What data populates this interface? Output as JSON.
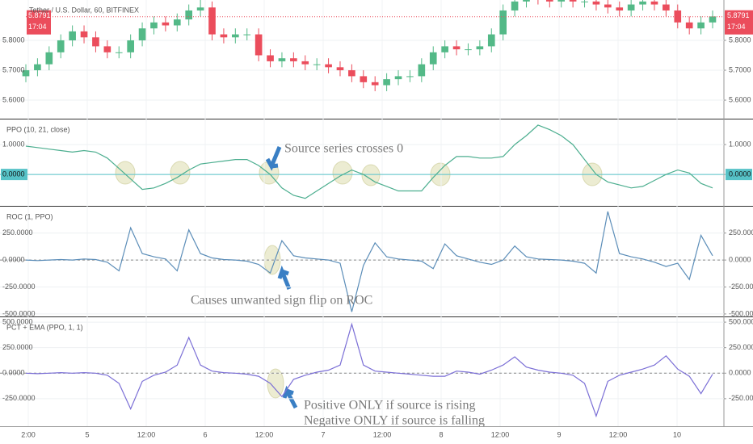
{
  "time_axis": {
    "labels": [
      "2:00",
      "5",
      "12:00",
      "6",
      "12:00",
      "7",
      "12:00",
      "8",
      "12:00",
      "9",
      "12:00",
      "10"
    ]
  },
  "chart_data": [
    {
      "type": "candlestick",
      "title": "Tether / U.S. Dollar, 60, BITFINEX",
      "open": [
        5.68,
        5.7,
        5.72,
        5.76,
        5.8,
        5.83,
        5.81,
        5.78,
        5.76,
        5.76,
        5.8,
        5.84,
        5.86,
        5.85,
        5.87,
        5.9,
        5.91,
        5.82,
        5.81,
        5.82,
        5.82,
        5.75,
        5.73,
        5.74,
        5.73,
        5.72,
        5.72,
        5.71,
        5.7,
        5.68,
        5.66,
        5.65,
        5.67,
        5.68,
        5.68,
        5.72,
        5.76,
        5.78,
        5.77,
        5.77,
        5.78,
        5.82,
        5.9,
        5.93,
        5.95,
        5.94,
        5.93,
        5.94,
        5.93,
        5.93,
        5.92,
        5.91,
        5.9,
        5.92,
        5.93,
        5.92,
        5.9,
        5.86,
        5.84,
        5.86
      ],
      "high": [
        5.72,
        5.74,
        5.78,
        5.82,
        5.85,
        5.85,
        5.83,
        5.8,
        5.78,
        5.82,
        5.86,
        5.88,
        5.88,
        5.89,
        5.92,
        5.97,
        5.93,
        5.84,
        5.84,
        5.84,
        5.84,
        5.77,
        5.76,
        5.76,
        5.75,
        5.74,
        5.74,
        5.73,
        5.72,
        5.7,
        5.68,
        5.69,
        5.7,
        5.7,
        5.74,
        5.78,
        5.8,
        5.8,
        5.79,
        5.8,
        5.84,
        5.92,
        5.95,
        5.97,
        5.97,
        5.96,
        5.96,
        5.96,
        5.95,
        5.95,
        5.94,
        5.93,
        5.94,
        5.95,
        5.95,
        5.94,
        5.92,
        5.88,
        5.88,
        5.9
      ],
      "low": [
        5.66,
        5.68,
        5.7,
        5.74,
        5.78,
        5.79,
        5.76,
        5.74,
        5.74,
        5.74,
        5.78,
        5.82,
        5.83,
        5.83,
        5.85,
        5.88,
        5.8,
        5.79,
        5.79,
        5.8,
        5.73,
        5.71,
        5.71,
        5.71,
        5.7,
        5.7,
        5.69,
        5.68,
        5.66,
        5.64,
        5.63,
        5.63,
        5.65,
        5.66,
        5.66,
        5.7,
        5.74,
        5.75,
        5.75,
        5.75,
        5.76,
        5.8,
        5.88,
        5.91,
        5.92,
        5.91,
        5.91,
        5.91,
        5.91,
        5.9,
        5.89,
        5.88,
        5.88,
        5.9,
        5.9,
        5.88,
        5.84,
        5.82,
        5.82,
        5.84
      ],
      "close": [
        5.7,
        5.72,
        5.76,
        5.8,
        5.83,
        5.81,
        5.78,
        5.76,
        5.76,
        5.8,
        5.84,
        5.86,
        5.85,
        5.87,
        5.9,
        5.91,
        5.82,
        5.81,
        5.82,
        5.82,
        5.75,
        5.73,
        5.74,
        5.73,
        5.72,
        5.72,
        5.71,
        5.7,
        5.68,
        5.66,
        5.65,
        5.67,
        5.68,
        5.68,
        5.72,
        5.76,
        5.78,
        5.77,
        5.77,
        5.78,
        5.82,
        5.9,
        5.93,
        5.95,
        5.94,
        5.93,
        5.94,
        5.93,
        5.93,
        5.92,
        5.91,
        5.9,
        5.92,
        5.93,
        5.92,
        5.9,
        5.86,
        5.84,
        5.86,
        5.88
      ],
      "up_color": "#53b987",
      "down_color": "#eb4d5c",
      "ylim": [
        5.538,
        5.935
      ],
      "yticks": [
        {
          "value": 5.6,
          "label": "5.6000"
        },
        {
          "value": 5.7,
          "label": "5.7000"
        },
        {
          "value": 5.8,
          "label": "5.8000"
        }
      ],
      "last_price": 5.8791,
      "countdown": "17:04",
      "grid": true
    },
    {
      "type": "line",
      "title": "PPO (10, 21, close)",
      "color": "#4cae8f",
      "values": [
        0.95,
        0.9,
        0.85,
        0.8,
        0.75,
        0.8,
        0.75,
        0.55,
        0.2,
        -0.15,
        -0.5,
        -0.45,
        -0.3,
        -0.1,
        0.15,
        0.35,
        0.4,
        0.45,
        0.5,
        0.5,
        0.3,
        0.0,
        -0.45,
        -0.7,
        -0.8,
        -0.55,
        -0.3,
        -0.05,
        0.15,
        0.0,
        -0.25,
        -0.4,
        -0.55,
        -0.55,
        -0.55,
        -0.1,
        0.3,
        0.6,
        0.6,
        0.55,
        0.55,
        0.6,
        1.0,
        1.3,
        1.65,
        1.5,
        1.3,
        1.0,
        0.5,
        0.0,
        -0.25,
        -0.35,
        -0.45,
        -0.4,
        -0.2,
        0.0,
        0.15,
        0.05,
        -0.3,
        -0.45
      ],
      "ylim": [
        -1.05,
        1.84
      ],
      "yticks": [
        {
          "value": 0,
          "label": "0.0000"
        },
        {
          "value": 1,
          "label": "1.0000"
        }
      ],
      "baseline": {
        "value": 0,
        "color": "#56c2c7",
        "style": "solid"
      },
      "annotations": [
        "Source series crosses 0"
      ],
      "grid": true
    },
    {
      "type": "line",
      "title": "ROC (1, PPO)",
      "color": "#5b8db8",
      "values": [
        0,
        -5,
        0,
        5,
        0,
        10,
        5,
        -20,
        -100,
        300,
        60,
        30,
        10,
        -100,
        280,
        60,
        20,
        5,
        0,
        -10,
        -40,
        -120,
        180,
        40,
        20,
        10,
        0,
        -30,
        -480,
        -50,
        160,
        30,
        10,
        0,
        -10,
        -80,
        150,
        40,
        10,
        -20,
        -40,
        0,
        130,
        30,
        10,
        5,
        0,
        -10,
        -30,
        -120,
        450,
        60,
        30,
        10,
        -20,
        -60,
        -30,
        -180,
        230,
        40
      ],
      "ylim": [
        -523,
        495
      ],
      "yticks": [
        {
          "value": -500,
          "label": "-500.0000"
        },
        {
          "value": -250,
          "label": "-250.0000"
        },
        {
          "value": 0,
          "label": "0.0000"
        },
        {
          "value": 250,
          "label": "250.0000"
        }
      ],
      "baseline": {
        "value": 0,
        "color": "#888888",
        "style": "dashed"
      },
      "annotations": [
        "Causes unwanted sign flip on ROC"
      ],
      "grid": true
    },
    {
      "type": "line",
      "title": "PCT + EMA (PPO, 1, 1)",
      "color": "#7b6fd6",
      "values": [
        0,
        -5,
        0,
        5,
        0,
        5,
        0,
        -20,
        -100,
        -350,
        -80,
        -20,
        10,
        80,
        350,
        80,
        20,
        5,
        0,
        -10,
        -30,
        -100,
        -230,
        -60,
        -20,
        10,
        30,
        80,
        480,
        80,
        20,
        10,
        0,
        -10,
        -20,
        -30,
        -30,
        20,
        10,
        -10,
        30,
        80,
        160,
        60,
        30,
        10,
        0,
        -20,
        -100,
        -420,
        -80,
        -20,
        10,
        40,
        80,
        170,
        40,
        -30,
        -200,
        -10
      ],
      "ylim": [
        -520,
        548
      ],
      "yticks": [
        {
          "value": -250,
          "label": "-250.0000"
        },
        {
          "value": 0,
          "label": "0.0000"
        },
        {
          "value": 250,
          "label": "250.0000"
        },
        {
          "value": 500,
          "label": "500.0000"
        }
      ],
      "baseline": {
        "value": 0,
        "color": "#888888",
        "style": "dashed"
      },
      "annotations": [
        "Positive ONLY if source is rising",
        "Negative ONLY if source is falling"
      ],
      "grid": true
    }
  ]
}
